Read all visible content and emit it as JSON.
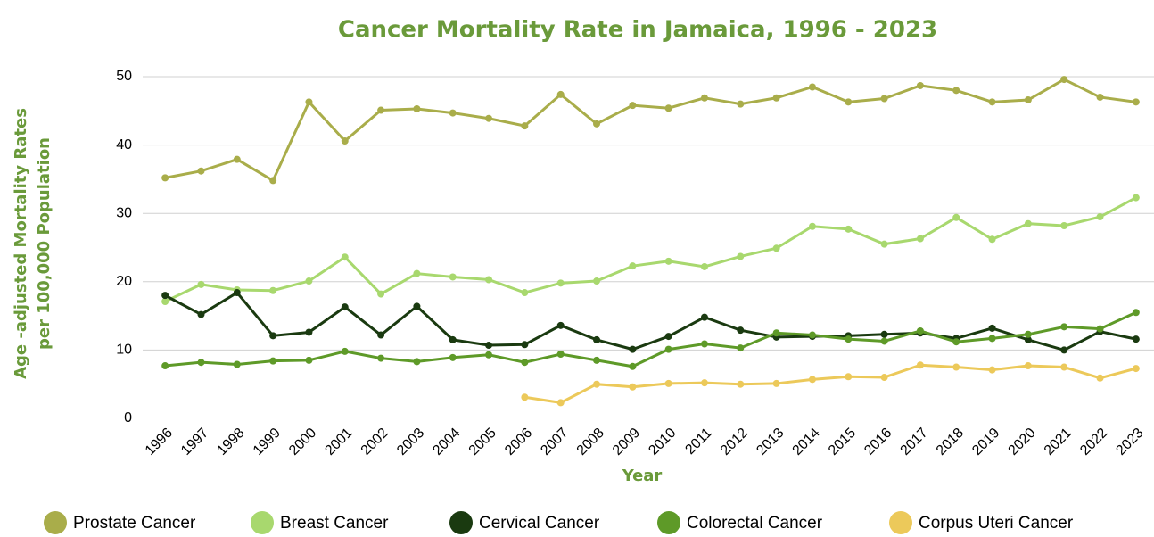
{
  "chart_data": {
    "type": "line",
    "title": "Cancer Mortality Rate in Jamaica, 1996 - 2023",
    "x_label": "Year",
    "y_label": [
      "Age -adjusted Mortality Rates",
      "per 100,000 Population"
    ],
    "categories": [
      "1996",
      "1997",
      "1998",
      "1999",
      "2000",
      "2001",
      "2002",
      "2003",
      "2004",
      "2005",
      "2006",
      "2007",
      "2008",
      "2009",
      "2010",
      "2011",
      "2012",
      "2013",
      "2014",
      "2015",
      "2016",
      "2017",
      "2018",
      "2019",
      "2020",
      "2021",
      "2022",
      "2023"
    ],
    "ylim": [
      0,
      50
    ],
    "yticks": [
      0,
      10,
      20,
      30,
      40,
      50
    ],
    "grid": true,
    "legend": "bottom",
    "series": [
      {
        "name": "Prostate Cancer",
        "color": "#a9ad4a",
        "values": [
          35.2,
          36.2,
          37.9,
          34.8,
          46.3,
          40.6,
          45.1,
          45.3,
          44.7,
          43.9,
          42.8,
          47.4,
          43.1,
          45.8,
          45.4,
          46.9,
          46.0,
          46.9,
          48.5,
          46.3,
          46.8,
          48.7,
          48.0,
          46.3,
          46.6,
          49.6,
          47.0,
          46.3
        ]
      },
      {
        "name": "Breast Cancer",
        "color": "#a8d86e",
        "values": [
          17.1,
          19.6,
          18.8,
          18.7,
          20.1,
          23.6,
          18.2,
          21.2,
          20.7,
          20.3,
          18.4,
          19.8,
          20.1,
          22.3,
          23.0,
          22.2,
          23.7,
          24.9,
          28.1,
          27.7,
          25.5,
          26.3,
          29.4,
          26.2,
          28.5,
          28.2,
          29.5,
          32.3
        ]
      },
      {
        "name": "Cervical Cancer",
        "color": "#1a3a10",
        "values": [
          18.0,
          15.2,
          18.4,
          12.1,
          12.6,
          16.3,
          12.2,
          16.4,
          11.5,
          10.7,
          10.8,
          13.6,
          11.5,
          10.1,
          12.0,
          14.8,
          12.9,
          11.9,
          12.0,
          12.1,
          12.3,
          12.5,
          11.7,
          13.2,
          11.5,
          10.0,
          12.7,
          11.6
        ]
      },
      {
        "name": "Colorectal Cancer",
        "color": "#5e9a28",
        "values": [
          7.7,
          8.2,
          7.9,
          8.4,
          8.5,
          9.8,
          8.8,
          8.3,
          8.9,
          9.3,
          8.2,
          9.4,
          8.5,
          7.6,
          10.1,
          10.9,
          10.3,
          12.5,
          12.2,
          11.6,
          11.3,
          12.8,
          11.2,
          11.7,
          12.3,
          13.4,
          13.1,
          15.5
        ]
      },
      {
        "name": "Corpus Uteri Cancer",
        "color": "#ecc95a",
        "values": [
          null,
          null,
          null,
          null,
          null,
          null,
          null,
          null,
          null,
          null,
          3.1,
          2.3,
          5.0,
          4.6,
          5.1,
          5.2,
          5.0,
          5.1,
          5.7,
          6.1,
          6.0,
          7.8,
          7.5,
          7.1,
          7.7,
          7.5,
          5.9,
          7.3
        ]
      }
    ]
  }
}
